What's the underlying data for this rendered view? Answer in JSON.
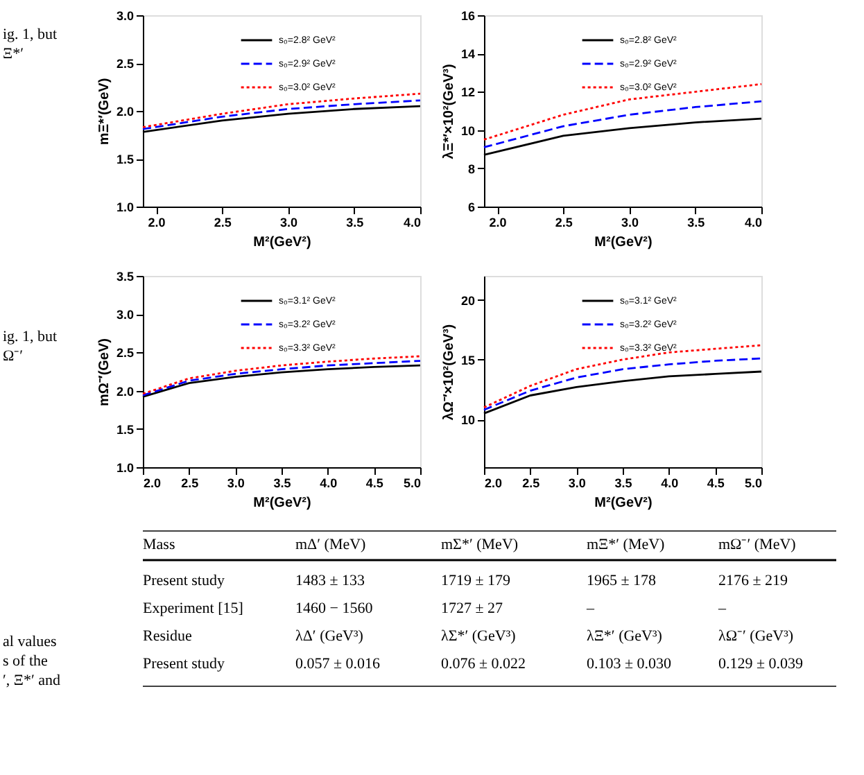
{
  "chart_data": [
    {
      "type": "line",
      "xlabel": "M²(GeV²)",
      "ylabel": "mΞ*′(GeV)",
      "x": [
        1.9,
        2.5,
        3.0,
        3.5,
        4.0
      ],
      "xlim": [
        1.9,
        4.0
      ],
      "xticks": [
        {
          "value": 2,
          "label": "2.0"
        },
        2.5,
        {
          "value": 3,
          "label": "3.0"
        },
        3.5,
        {
          "value": 4,
          "label": "4.0"
        }
      ],
      "ylim": [
        1.0,
        3.0
      ],
      "yticks": [
        {
          "value": 1,
          "label": "1.0"
        },
        1.5,
        {
          "value": 2,
          "label": "2.0"
        },
        2.5,
        {
          "value": 3,
          "label": "3.0"
        }
      ],
      "grid": false,
      "legend": "top",
      "series": [
        {
          "name": "s₀=2.8² GeV²",
          "color": "#000000",
          "line_style": "solid",
          "values": [
            1.78,
            1.9,
            1.97,
            2.02,
            2.05
          ]
        },
        {
          "name": "s₀=2.9² GeV²",
          "color": "#0000ff",
          "line_style": "dashed",
          "values": [
            1.81,
            1.94,
            2.02,
            2.07,
            2.11
          ]
        },
        {
          "name": "s₀=3.0² GeV²",
          "color": "#ff0000",
          "line_style": "dotted",
          "values": [
            1.83,
            1.97,
            2.07,
            2.13,
            2.18
          ]
        }
      ]
    },
    {
      "type": "line",
      "xlabel": "M²(GeV²)",
      "ylabel": "λΞ*′×10²(GeV³)",
      "x": [
        1.9,
        2.5,
        3.0,
        3.5,
        4.0
      ],
      "xlim": [
        1.9,
        4.0
      ],
      "xticks": [
        {
          "value": 2,
          "label": "2.0"
        },
        2.5,
        {
          "value": 3,
          "label": "3.0"
        },
        3.5,
        {
          "value": 4,
          "label": "4.0"
        }
      ],
      "ylim": [
        6,
        16
      ],
      "yticks": [
        6,
        8,
        10,
        12,
        14,
        16
      ],
      "grid": false,
      "legend": "top",
      "series": [
        {
          "name": "s₀=2.8² GeV²",
          "color": "#000000",
          "line_style": "solid",
          "values": [
            8.7,
            9.7,
            10.1,
            10.4,
            10.6
          ]
        },
        {
          "name": "s₀=2.9² GeV²",
          "color": "#0000ff",
          "line_style": "dashed",
          "values": [
            9.1,
            10.2,
            10.8,
            11.2,
            11.5
          ]
        },
        {
          "name": "s₀=3.0² GeV²",
          "color": "#ff0000",
          "line_style": "dotted",
          "values": [
            9.5,
            10.8,
            11.6,
            12.0,
            12.4
          ]
        }
      ]
    },
    {
      "type": "line",
      "xlabel": "M²(GeV²)",
      "ylabel": "mΩ⁻′(GeV)",
      "x": [
        2.0,
        2.5,
        3.0,
        3.5,
        4.0,
        4.5,
        5.0
      ],
      "xlim": [
        2.0,
        5.0
      ],
      "xticks": [
        {
          "value": 2,
          "label": "2.0"
        },
        2.5,
        {
          "value": 3,
          "label": "3.0"
        },
        3.5,
        {
          "value": 4,
          "label": "4.0"
        },
        4.5,
        {
          "value": 5,
          "label": "5.0"
        }
      ],
      "ylim": [
        1.0,
        3.5
      ],
      "yticks": [
        {
          "value": 1,
          "label": "1.0"
        },
        1.5,
        {
          "value": 2,
          "label": "2.0"
        },
        2.5,
        {
          "value": 3,
          "label": "3.0"
        },
        3.5
      ],
      "grid": false,
      "legend": "top",
      "series": [
        {
          "name": "s₀=3.1² GeV²",
          "color": "#000000",
          "line_style": "solid",
          "values": [
            1.92,
            2.1,
            2.18,
            2.24,
            2.28,
            2.31,
            2.33
          ]
        },
        {
          "name": "s₀=3.2² GeV²",
          "color": "#0000ff",
          "line_style": "dashed",
          "values": [
            1.94,
            2.13,
            2.22,
            2.28,
            2.33,
            2.36,
            2.39
          ]
        },
        {
          "name": "s₀=3.3² GeV²",
          "color": "#ff0000",
          "line_style": "dotted",
          "values": [
            1.96,
            2.16,
            2.26,
            2.33,
            2.38,
            2.42,
            2.45
          ]
        }
      ]
    },
    {
      "type": "line",
      "xlabel": "M²(GeV²)",
      "ylabel": "λΩ⁻′×10²(GeV³)",
      "x": [
        2.0,
        2.5,
        3.0,
        3.5,
        4.0,
        4.5,
        5.0
      ],
      "xlim": [
        2.0,
        5.0
      ],
      "xticks": [
        {
          "value": 2,
          "label": "2.0"
        },
        2.5,
        {
          "value": 3,
          "label": "3.0"
        },
        3.5,
        {
          "value": 4,
          "label": "4.0"
        },
        4.5,
        {
          "value": 5,
          "label": "5.0"
        }
      ],
      "ylim": [
        6,
        22
      ],
      "yticks": [
        10,
        15,
        20
      ],
      "grid": false,
      "legend": "top",
      "series": [
        {
          "name": "s₀=3.1² GeV²",
          "color": "#000000",
          "line_style": "solid",
          "values": [
            10.5,
            12.0,
            12.7,
            13.2,
            13.6,
            13.8,
            14.0
          ]
        },
        {
          "name": "s₀=3.2² GeV²",
          "color": "#0000ff",
          "line_style": "dashed",
          "values": [
            10.8,
            12.4,
            13.5,
            14.2,
            14.6,
            14.9,
            15.1
          ]
        },
        {
          "name": "s₀=3.3² GeV²",
          "color": "#ff0000",
          "line_style": "dotted",
          "values": [
            11.0,
            12.8,
            14.2,
            15.0,
            15.6,
            15.9,
            16.2
          ]
        }
      ]
    },
    {
      "type": "other",
      "annotations": [
        "ig. 1, but",
        "Ξ*′",
        "ig. 1, but",
        "Ω⁻′",
        "al values",
        "s of the",
        "′, Ξ*′ and"
      ]
    },
    {
      "type": "other",
      "annotations": [
        "Mass",
        "mΔ′ (MeV)",
        "mΣ*′ (MeV)",
        "mΞ*′ (MeV)",
        "mΩ⁻′ (MeV)",
        "Present study",
        "1483 ± 133",
        "1719 ± 179",
        "1965 ± 178",
        "2176 ± 219",
        "Experiment [15]",
        "1460 − 1560",
        "1727 ± 27",
        "–",
        "–",
        "Residue",
        "λΔ′ (GeV³)",
        "λΣ*′ (GeV³)",
        "λΞ*′ (GeV³)",
        "λΩ⁻′ (GeV³)",
        "Present study",
        "0.057 ± 0.016",
        "0.076 ± 0.022",
        "0.103 ± 0.030",
        "0.129 ± 0.039"
      ]
    }
  ]
}
